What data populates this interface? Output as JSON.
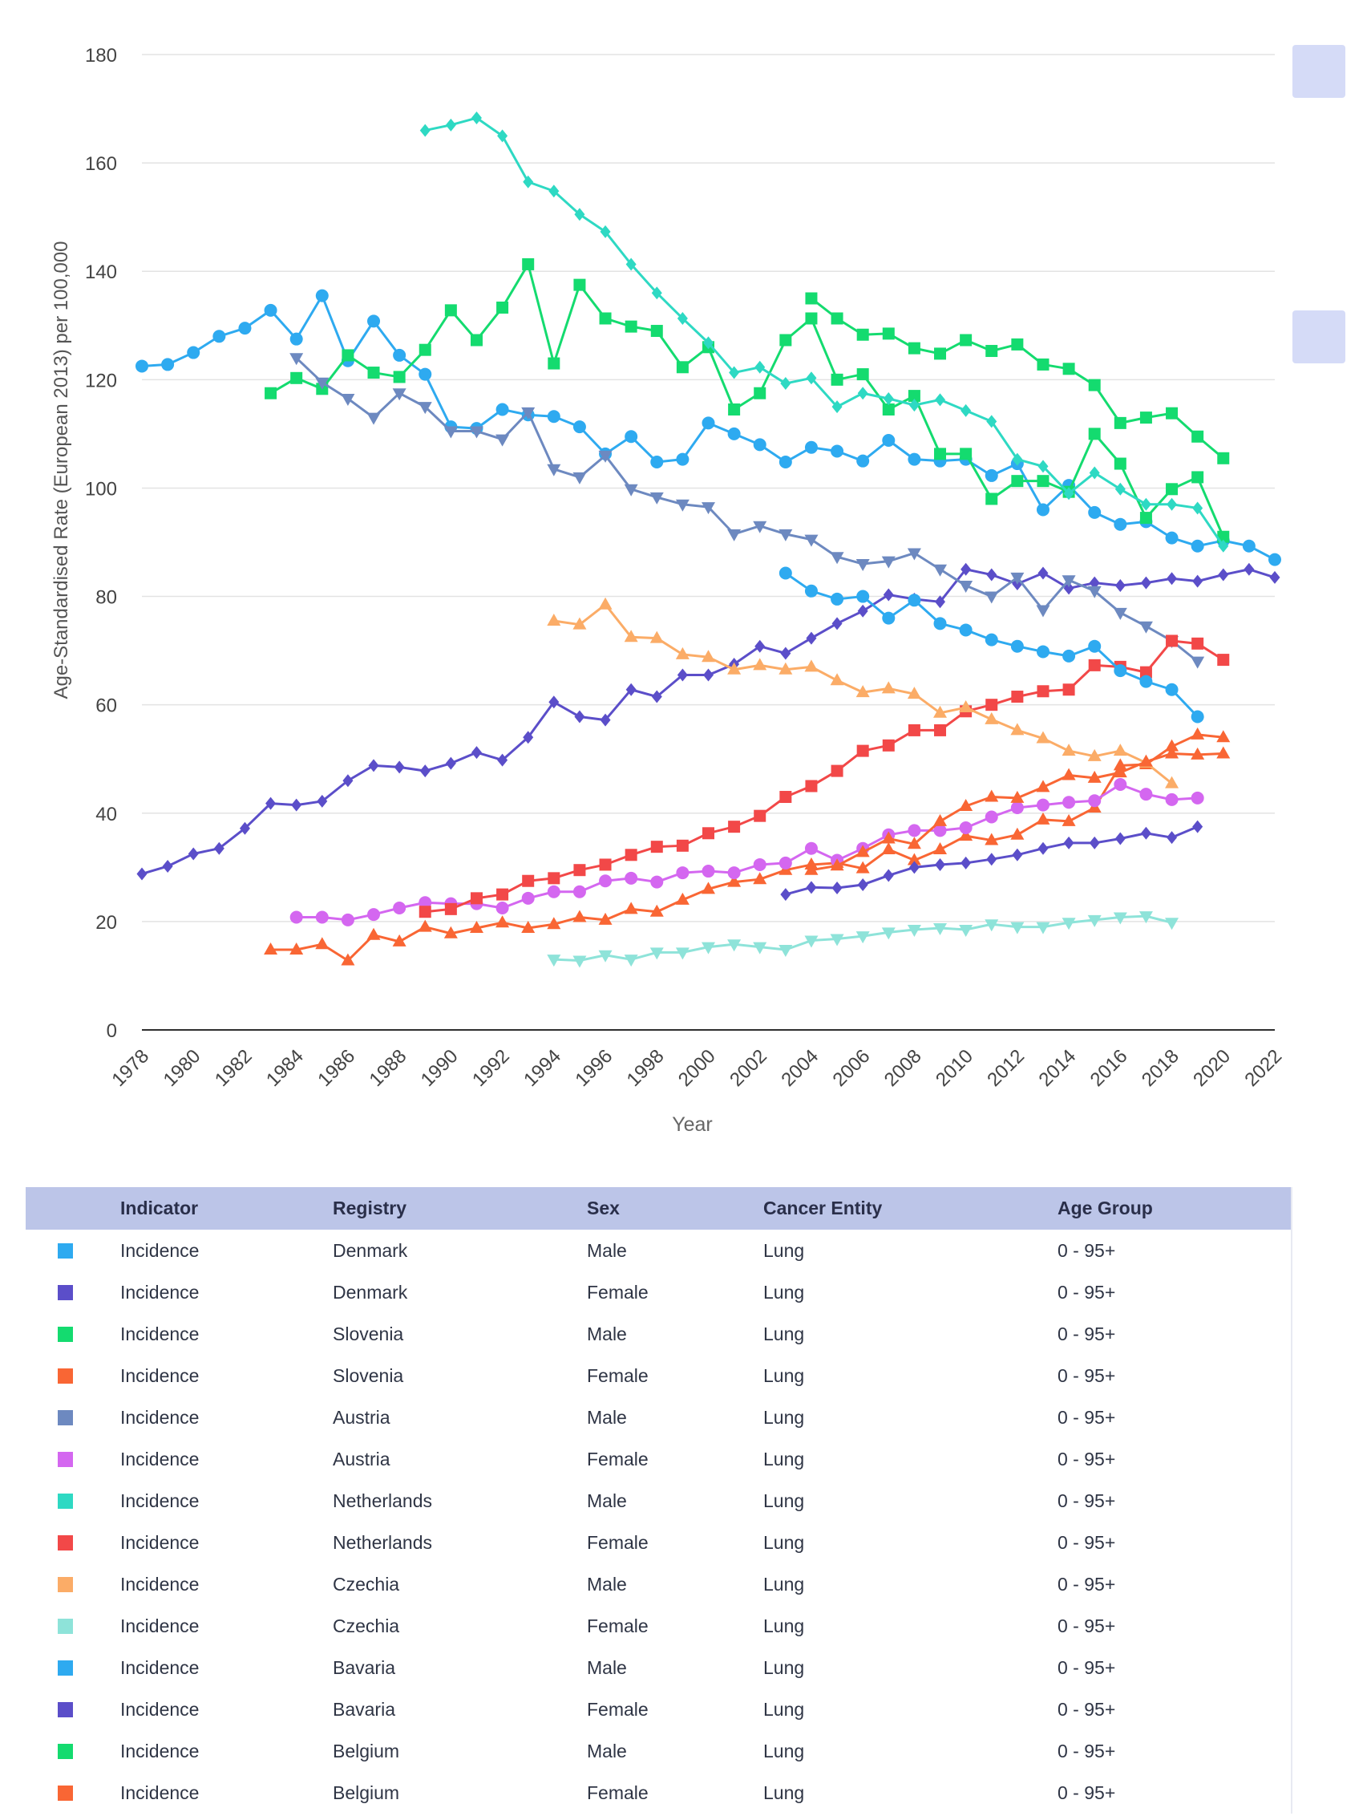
{
  "chart_data": {
    "type": "line",
    "xlabel": "Year",
    "ylabel": "Age-Standardised Rate (European 2013) per 100,000",
    "xlim": [
      1978,
      2022
    ],
    "ylim": [
      0,
      180
    ],
    "yticks": [
      0,
      20,
      40,
      60,
      80,
      100,
      120,
      140,
      160,
      180
    ],
    "xticks": [
      1978,
      1980,
      1982,
      1984,
      1986,
      1988,
      1990,
      1992,
      1994,
      1996,
      1998,
      2000,
      2002,
      2004,
      2006,
      2008,
      2010,
      2012,
      2014,
      2016,
      2018,
      2020,
      2022
    ],
    "grid": true,
    "series": [
      {
        "name": "Denmark Male",
        "color": "#2eaaf0",
        "marker": "circle",
        "start": 1978,
        "values": [
          122.5,
          122.8,
          125,
          128,
          129.5,
          132.8,
          127.5,
          135.5,
          123.5,
          130.8,
          124.5,
          121,
          111.3,
          111,
          114.5,
          113.5,
          113.2,
          111.3,
          106.3,
          109.5,
          104.8,
          105.3,
          112,
          110,
          108,
          104.8,
          107.5,
          106.8,
          105,
          108.8,
          105.3,
          105,
          105.3,
          102.3,
          104.5,
          96,
          100.5,
          95.5,
          93.3,
          93.8,
          90.8,
          89.3,
          90.3,
          89.3,
          86.8
        ]
      },
      {
        "name": "Denmark Female",
        "color": "#5b4ec9",
        "marker": "diamond",
        "start": 1978,
        "values": [
          28.8,
          30.2,
          32.5,
          33.5,
          37.2,
          41.8,
          41.5,
          42.2,
          46,
          48.8,
          48.5,
          47.8,
          49.2,
          51.2,
          49.8,
          54,
          60.5,
          57.8,
          57.2,
          62.8,
          61.5,
          65.5,
          65.5,
          67.5,
          70.8,
          69.5,
          72.3,
          75,
          77.3,
          80.3,
          79.5,
          79,
          85,
          84,
          82.3,
          84.3,
          81.5,
          82.5,
          82,
          82.5,
          83.3,
          82.8,
          84,
          85,
          83.5
        ]
      },
      {
        "name": "Slovenia Male",
        "color": "#14db6f",
        "marker": "square",
        "start": 1983,
        "values": [
          117.5,
          120.3,
          118.3,
          124.5,
          121.3,
          120.5,
          125.5,
          132.8,
          127.3,
          133.3,
          141.3,
          123,
          137.5,
          131.3,
          129.8,
          129,
          122.3,
          126,
          114.5,
          117.5,
          127.3,
          131.3,
          120,
          121,
          114.5,
          117,
          106.3,
          106.3,
          98,
          101.3,
          101.3,
          99.3,
          110,
          104.5,
          94.5,
          99.8,
          102,
          91,
          null
        ]
      },
      {
        "name": "Slovenia Female",
        "color": "#f96634",
        "marker": "triangle-up",
        "start": 1983,
        "values": [
          14.8,
          14.8,
          15.8,
          12.8,
          17.5,
          16.3,
          19,
          17.8,
          18.8,
          19.8,
          18.8,
          19.5,
          20.8,
          20.3,
          22.3,
          21.8,
          24,
          26,
          27.3,
          27.8,
          29.5,
          30.5,
          30.8,
          29.8,
          33.3,
          31.3,
          33.3,
          35.8,
          35,
          36,
          38.8,
          38.5,
          41,
          48.8,
          49,
          52.3,
          54.5,
          54
        ]
      },
      {
        "name": "Austria Male",
        "color": "#6d89c0",
        "marker": "triangle-down",
        "start": 1984,
        "values": [
          124,
          119.5,
          116.5,
          113,
          117.5,
          115,
          110.5,
          110.5,
          109,
          114,
          103.5,
          102,
          106,
          99.8,
          98.3,
          97,
          96.5,
          91.5,
          93,
          91.5,
          90.5,
          87.3,
          86,
          86.5,
          88,
          85,
          82,
          80,
          83.5,
          77.5,
          83,
          81,
          77,
          74.5,
          71.8,
          68
        ]
      },
      {
        "name": "Austria Female",
        "color": "#d467f0",
        "marker": "circle",
        "start": 1984,
        "values": [
          20.8,
          20.8,
          20.3,
          21.3,
          22.5,
          23.5,
          23.3,
          23.3,
          22.5,
          24.3,
          25.5,
          25.5,
          27.5,
          28,
          27.3,
          29,
          29.3,
          29,
          30.5,
          30.8,
          33.5,
          31.3,
          33.5,
          36,
          36.8,
          36.8,
          37.3,
          39.3,
          41,
          41.5,
          42,
          42.3,
          45.3,
          43.5,
          42.5,
          42.8
        ]
      },
      {
        "name": "Netherlands Male",
        "color": "#2ed9c3",
        "marker": "diamond",
        "start": 1989,
        "values": [
          166,
          167,
          168.3,
          165,
          156.5,
          154.8,
          150.5,
          147.3,
          141.3,
          136,
          131.3,
          126.8,
          121.3,
          122.3,
          119.3,
          120.3,
          115,
          117.5,
          116.5,
          115.3,
          116.3,
          114.3,
          112.3,
          105.3,
          104,
          99,
          102.8,
          99.8,
          97,
          97,
          96.3,
          89.3
        ]
      },
      {
        "name": "Netherlands Female",
        "color": "#f24848",
        "marker": "square",
        "start": 1989,
        "values": [
          21.8,
          22.3,
          24.3,
          25,
          27.5,
          28,
          29.5,
          30.5,
          32.3,
          33.8,
          34,
          36.3,
          37.5,
          39.5,
          43,
          45,
          47.8,
          51.5,
          52.5,
          55.3,
          55.3,
          58.8,
          60,
          61.5,
          62.5,
          62.8,
          67.3,
          67,
          66,
          71.8,
          71.3,
          68.3
        ]
      },
      {
        "name": "Czechia Male",
        "color": "#fbac67",
        "marker": "triangle-up",
        "start": 1994,
        "values": [
          75.5,
          74.8,
          78.5,
          72.5,
          72.3,
          69.3,
          68.8,
          66.5,
          67.3,
          66.5,
          67,
          64.5,
          62.3,
          63,
          62,
          58.5,
          59.5,
          57.3,
          55.3,
          53.8,
          51.5,
          50.5,
          51.5,
          49.3,
          45.5
        ]
      },
      {
        "name": "Czechia Female",
        "color": "#8ee3d9",
        "marker": "triangle-down",
        "start": 1994,
        "values": [
          13,
          12.8,
          13.8,
          13,
          14.3,
          14.3,
          15.3,
          15.8,
          15.3,
          14.8,
          16.5,
          16.8,
          17.3,
          18,
          18.5,
          18.8,
          18.5,
          19.5,
          19,
          19,
          19.8,
          20.3,
          20.8,
          21,
          19.8
        ]
      },
      {
        "name": "Bavaria Male",
        "color": "#2eaaf0",
        "marker": "circle",
        "start": 2003,
        "values": [
          84.3,
          81,
          79.5,
          80,
          76,
          79.3,
          75,
          73.8,
          72,
          70.8,
          69.8,
          69,
          70.8,
          66.3,
          64.3,
          62.8,
          57.8
        ]
      },
      {
        "name": "Bavaria Female",
        "color": "#5b4ec9",
        "marker": "diamond",
        "start": 2003,
        "values": [
          25,
          26.3,
          26.2,
          26.8,
          28.5,
          30,
          30.5,
          30.8,
          31.5,
          32.3,
          33.5,
          34.5,
          34.5,
          35.3,
          36.3,
          35.5,
          37.5
        ]
      },
      {
        "name": "Belgium Male",
        "color": "#14db6f",
        "marker": "square",
        "start": 2004,
        "values": [
          135,
          131.3,
          128.3,
          128.5,
          125.8,
          124.8,
          127.3,
          125.3,
          126.5,
          122.8,
          122,
          119,
          112,
          113,
          113.8,
          109.5,
          105.5
        ]
      },
      {
        "name": "Belgium Female",
        "color": "#f96634",
        "marker": "triangle-up",
        "start": 2004,
        "values": [
          29.5,
          30.3,
          32.8,
          35.3,
          34.3,
          38.5,
          41.3,
          43,
          42.8,
          44.8,
          47,
          46.5,
          47.5,
          49.5,
          51,
          50.8,
          51
        ]
      }
    ]
  },
  "side_buttons": [
    "",
    ""
  ],
  "legend_table": {
    "headers": {
      "indicator": "Indicator",
      "registry": "Registry",
      "sex": "Sex",
      "cancer": "Cancer Entity",
      "age": "Age Group"
    },
    "rows": [
      {
        "color": "#2eaaf0",
        "indicator": "Incidence",
        "registry": "Denmark",
        "sex": "Male",
        "cancer": "Lung",
        "age": "0 - 95+"
      },
      {
        "color": "#5b4ec9",
        "indicator": "Incidence",
        "registry": "Denmark",
        "sex": "Female",
        "cancer": "Lung",
        "age": "0 - 95+"
      },
      {
        "color": "#14db6f",
        "indicator": "Incidence",
        "registry": "Slovenia",
        "sex": "Male",
        "cancer": "Lung",
        "age": "0 - 95+"
      },
      {
        "color": "#f96634",
        "indicator": "Incidence",
        "registry": "Slovenia",
        "sex": "Female",
        "cancer": "Lung",
        "age": "0 - 95+"
      },
      {
        "color": "#6d89c0",
        "indicator": "Incidence",
        "registry": "Austria",
        "sex": "Male",
        "cancer": "Lung",
        "age": "0 - 95+"
      },
      {
        "color": "#d467f0",
        "indicator": "Incidence",
        "registry": "Austria",
        "sex": "Female",
        "cancer": "Lung",
        "age": "0 - 95+"
      },
      {
        "color": "#2ed9c3",
        "indicator": "Incidence",
        "registry": "Netherlands",
        "sex": "Male",
        "cancer": "Lung",
        "age": "0 - 95+"
      },
      {
        "color": "#f24848",
        "indicator": "Incidence",
        "registry": "Netherlands",
        "sex": "Female",
        "cancer": "Lung",
        "age": "0 - 95+"
      },
      {
        "color": "#fbac67",
        "indicator": "Incidence",
        "registry": "Czechia",
        "sex": "Male",
        "cancer": "Lung",
        "age": "0 - 95+"
      },
      {
        "color": "#8ee3d9",
        "indicator": "Incidence",
        "registry": "Czechia",
        "sex": "Female",
        "cancer": "Lung",
        "age": "0 - 95+"
      },
      {
        "color": "#2eaaf0",
        "indicator": "Incidence",
        "registry": "Bavaria",
        "sex": "Male",
        "cancer": "Lung",
        "age": "0 - 95+"
      },
      {
        "color": "#5b4ec9",
        "indicator": "Incidence",
        "registry": "Bavaria",
        "sex": "Female",
        "cancer": "Lung",
        "age": "0 - 95+"
      },
      {
        "color": "#14db6f",
        "indicator": "Incidence",
        "registry": "Belgium",
        "sex": "Male",
        "cancer": "Lung",
        "age": "0 - 95+"
      },
      {
        "color": "#f96634",
        "indicator": "Incidence",
        "registry": "Belgium",
        "sex": "Female",
        "cancer": "Lung",
        "age": "0 - 95+"
      }
    ]
  }
}
